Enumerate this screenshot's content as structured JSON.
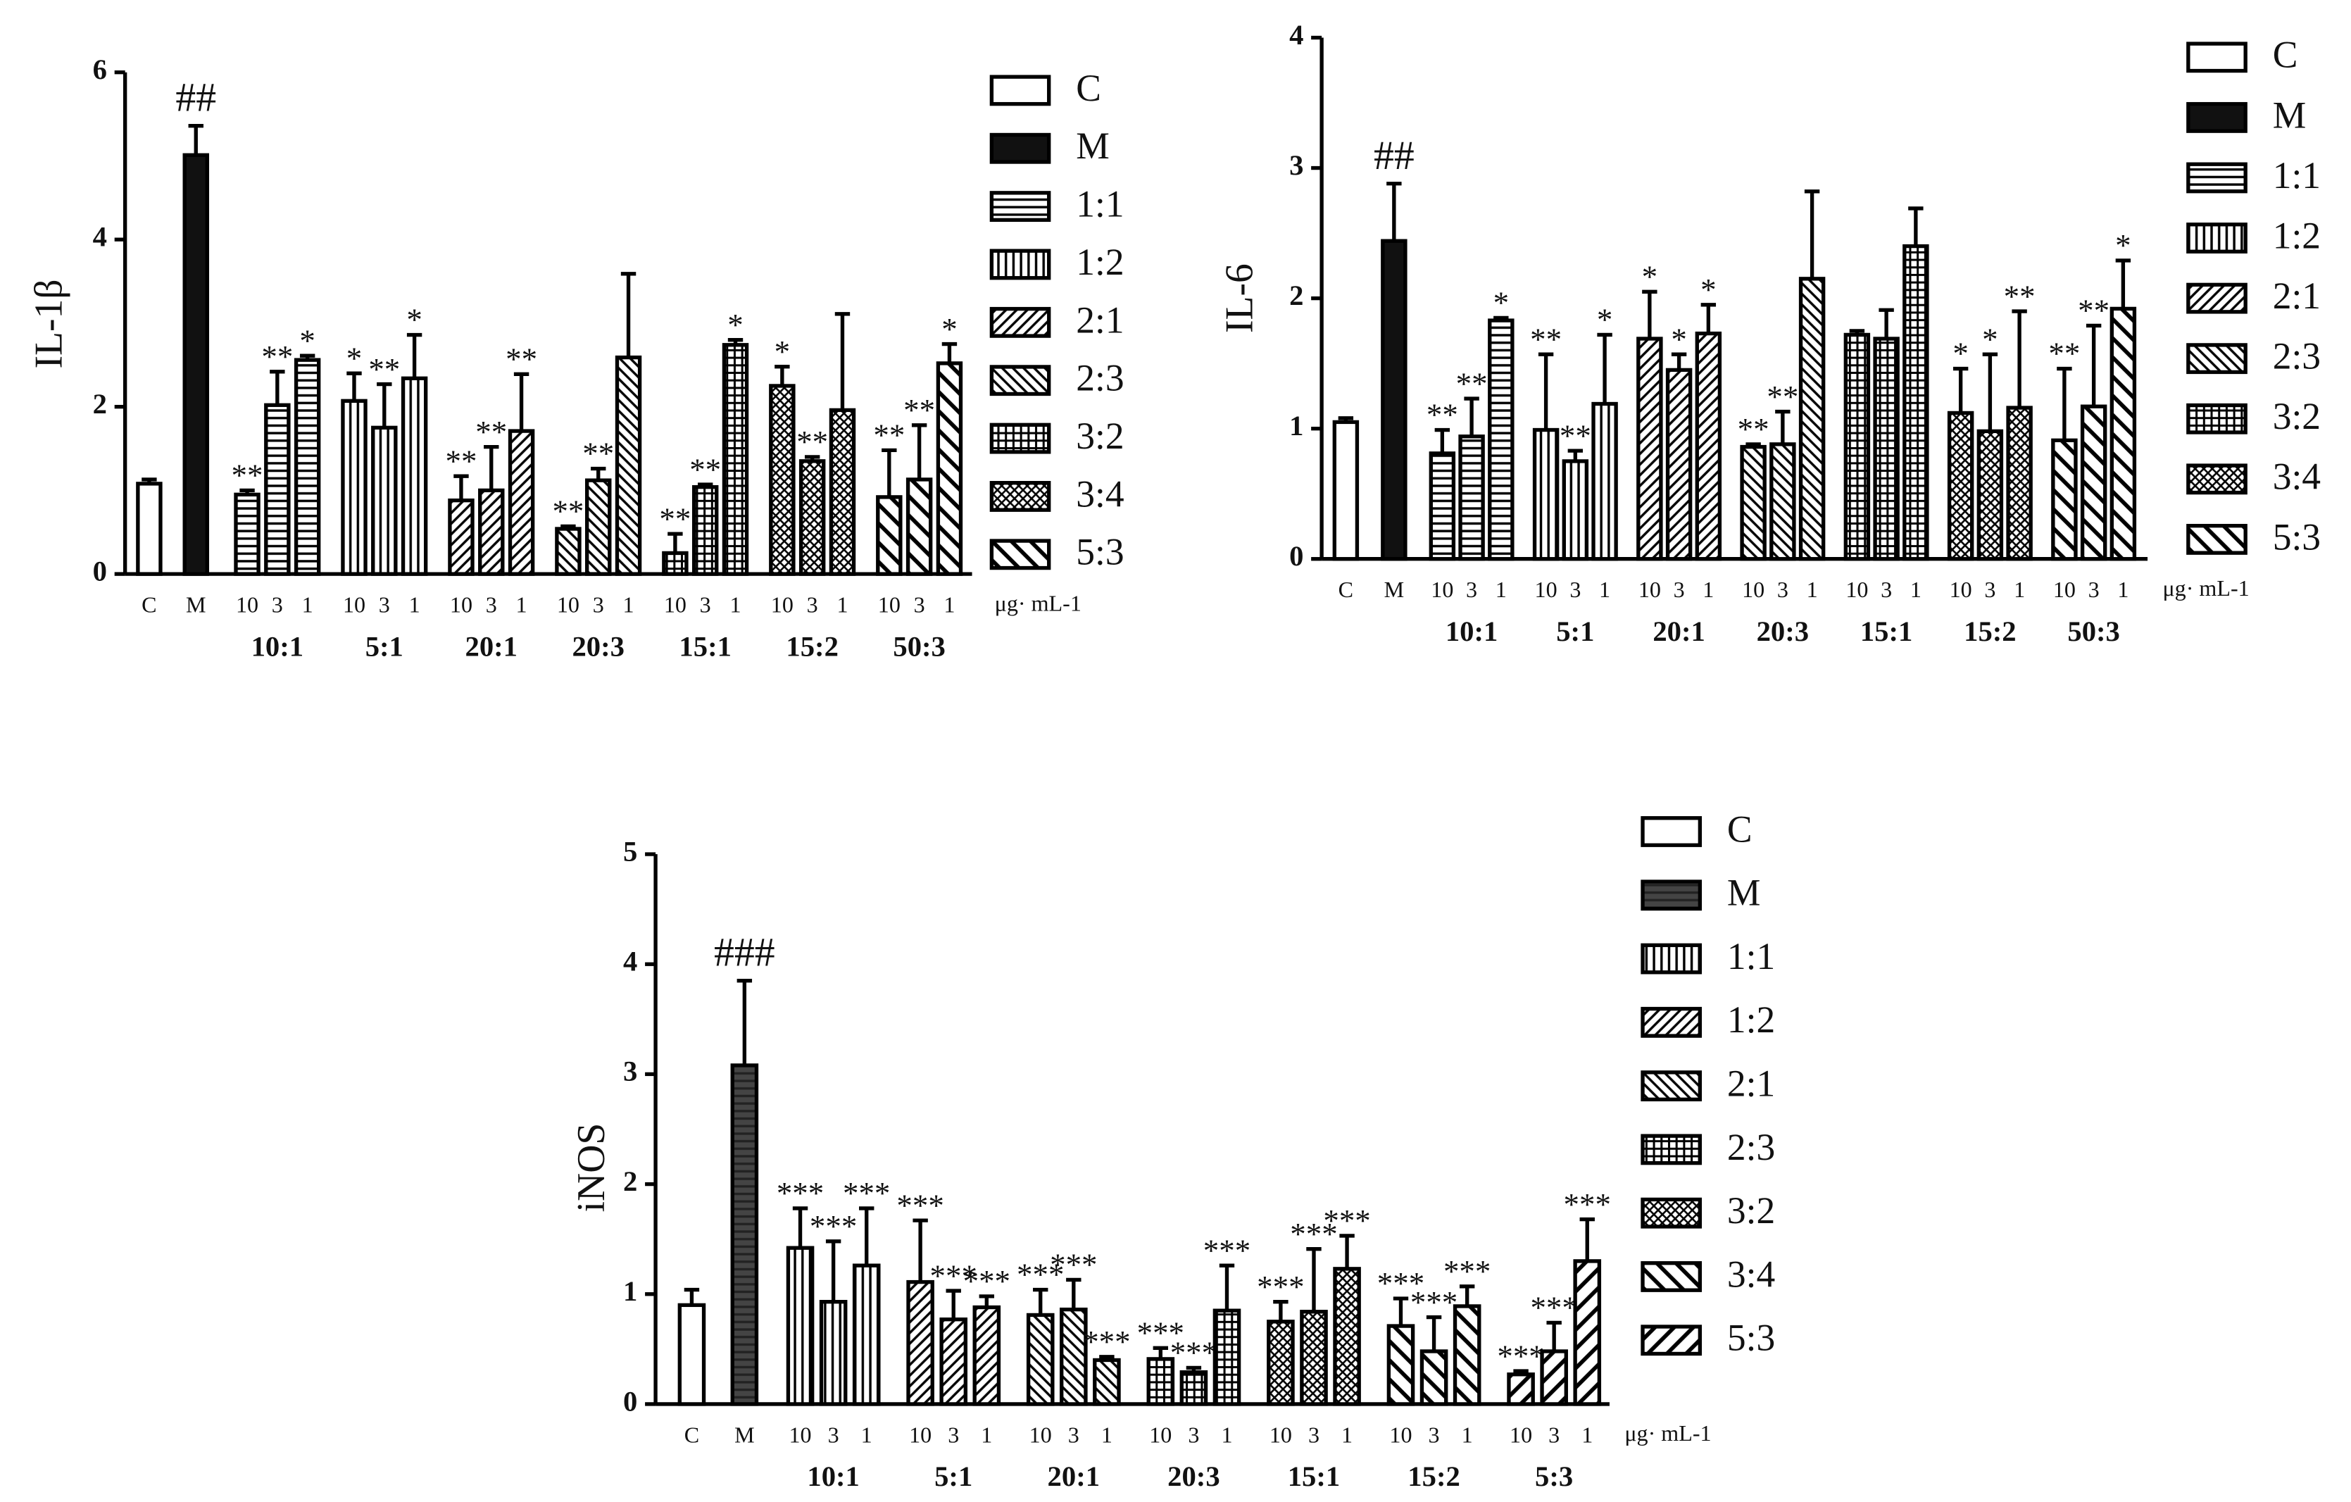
{
  "chart_data": [
    {
      "type": "bar",
      "ylabel": "IL-1β",
      "ylim": [
        0,
        6
      ],
      "yticks": [
        0,
        2,
        4,
        6
      ],
      "categories": [
        "C",
        "M",
        "10",
        "3",
        "1",
        "10",
        "3",
        "1",
        "10",
        "3",
        "1",
        "10",
        "3",
        "1",
        "10",
        "3",
        "1",
        "10",
        "3",
        "1",
        "10",
        "3",
        "1"
      ],
      "groups": [
        "10:1",
        "5:1",
        "20:1",
        "20:3",
        "15:1",
        "15:2",
        "50:3"
      ],
      "unit": "μg· mL-1",
      "values": [
        1.08,
        5.01,
        0.95,
        2.02,
        2.56,
        2.07,
        1.75,
        2.34,
        0.88,
        1.0,
        1.71,
        0.54,
        1.12,
        2.59,
        0.25,
        1.04,
        2.74,
        2.25,
        1.35,
        1.96,
        0.92,
        1.13,
        2.52
      ],
      "errors": [
        0.05,
        0.35,
        0.05,
        0.4,
        0.05,
        0.33,
        0.52,
        0.52,
        0.29,
        0.52,
        0.68,
        0.03,
        0.14,
        1.0,
        0.23,
        0.03,
        0.06,
        0.23,
        0.05,
        1.15,
        0.56,
        0.65,
        0.23
      ],
      "annotations": [
        null,
        "##",
        "**",
        "**",
        "*",
        "*",
        "**",
        "*",
        "**",
        "**",
        "**",
        "**",
        "**",
        null,
        "**",
        "**",
        "*",
        "*",
        "**",
        null,
        "**",
        "**",
        "*"
      ],
      "legend": [
        {
          "name": "C",
          "color": "#000000"
        },
        {
          "name": "M",
          "color": "#111111"
        },
        {
          "name": "1:1",
          "color": "#000000"
        },
        {
          "name": "1:2",
          "color": "#000000"
        },
        {
          "name": "2:1",
          "color": "#000000"
        },
        {
          "name": "2:3",
          "color": "#000000"
        },
        {
          "name": "3:2",
          "color": "#000000"
        },
        {
          "name": "3:4",
          "color": "#000000"
        },
        {
          "name": "5:3",
          "color": "#000000"
        }
      ]
    },
    {
      "type": "bar",
      "ylabel": "IL-6",
      "ylim": [
        0,
        4
      ],
      "yticks": [
        0,
        1,
        2,
        3,
        4
      ],
      "categories": [
        "C",
        "M",
        "10",
        "3",
        "1",
        "10",
        "3",
        "1",
        "10",
        "3",
        "1",
        "10",
        "3",
        "1",
        "10",
        "3",
        "1",
        "10",
        "3",
        "1",
        "10",
        "3",
        "1"
      ],
      "groups": [
        "10:1",
        "5:1",
        "20:1",
        "20:3",
        "15:1",
        "15:2",
        "50:3"
      ],
      "unit": "μg· mL-1",
      "values": [
        1.05,
        2.44,
        0.81,
        0.94,
        1.83,
        0.99,
        0.75,
        1.19,
        1.69,
        1.45,
        1.73,
        0.86,
        0.88,
        2.15,
        1.72,
        1.69,
        2.4,
        1.12,
        0.98,
        1.16,
        0.91,
        1.17,
        1.92
      ],
      "errors": [
        0.03,
        0.44,
        0.18,
        0.29,
        0.02,
        0.58,
        0.08,
        0.53,
        0.36,
        0.12,
        0.22,
        0.02,
        0.25,
        0.67,
        0.03,
        0.22,
        0.29,
        0.34,
        0.59,
        0.74,
        0.55,
        0.62,
        0.37
      ],
      "annotations": [
        null,
        "##",
        "**",
        "**",
        "*",
        "**",
        "**",
        "*",
        "*",
        "*",
        "*",
        "**",
        "**",
        null,
        null,
        null,
        null,
        "*",
        "*",
        "**",
        "**",
        "**",
        "*"
      ],
      "legend": [
        {
          "name": "C",
          "color": "#000000"
        },
        {
          "name": "M",
          "color": "#111111"
        },
        {
          "name": "1:1",
          "color": "#000000"
        },
        {
          "name": "1:2",
          "color": "#000000"
        },
        {
          "name": "2:1",
          "color": "#000000"
        },
        {
          "name": "2:3",
          "color": "#000000"
        },
        {
          "name": "3:2",
          "color": "#000000"
        },
        {
          "name": "3:4",
          "color": "#000000"
        },
        {
          "name": "5:3",
          "color": "#000000"
        }
      ]
    },
    {
      "type": "bar",
      "ylabel": "iNOS",
      "ylim": [
        0,
        5
      ],
      "yticks": [
        0,
        1,
        2,
        3,
        4,
        5
      ],
      "categories": [
        "C",
        "M",
        "10",
        "3",
        "1",
        "10",
        "3",
        "1",
        "10",
        "3",
        "1",
        "10",
        "3",
        "1",
        "10",
        "3",
        "1",
        "10",
        "3",
        "1",
        "10",
        "3",
        "1"
      ],
      "groups": [
        "10:1",
        "5:1",
        "20:1",
        "20:3",
        "15:1",
        "15:2",
        "5:3"
      ],
      "unit": "μg· mL-1",
      "values": [
        0.9,
        3.08,
        1.42,
        0.93,
        1.26,
        1.11,
        0.77,
        0.88,
        0.81,
        0.86,
        0.4,
        0.41,
        0.29,
        0.85,
        0.75,
        0.84,
        1.23,
        0.71,
        0.48,
        0.89,
        0.27,
        0.48,
        1.3
      ],
      "errors": [
        0.14,
        0.77,
        0.36,
        0.55,
        0.52,
        0.56,
        0.26,
        0.1,
        0.23,
        0.27,
        0.03,
        0.1,
        0.04,
        0.41,
        0.18,
        0.57,
        0.3,
        0.25,
        0.31,
        0.18,
        0.03,
        0.26,
        0.38
      ],
      "annotations": [
        null,
        "###",
        "***",
        "***",
        "***",
        "***",
        "***",
        "***",
        "***",
        "***",
        "***",
        "***",
        "***",
        "***",
        "***",
        "***",
        "***",
        "***",
        "***",
        "***",
        "***",
        "***",
        "***"
      ],
      "legend": [
        {
          "name": "C",
          "color": "#000000"
        },
        {
          "name": "M",
          "color": "#444444"
        },
        {
          "name": "1:1",
          "color": "#000000"
        },
        {
          "name": "1:2",
          "color": "#000000"
        },
        {
          "name": "2:1",
          "color": "#000000"
        },
        {
          "name": "2:3",
          "color": "#000000"
        },
        {
          "name": "3:2",
          "color": "#000000"
        },
        {
          "name": "3:4",
          "color": "#000000"
        },
        {
          "name": "5:3",
          "color": "#000000"
        }
      ]
    }
  ]
}
